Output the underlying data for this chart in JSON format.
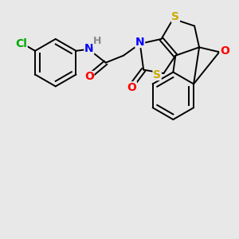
{
  "bg_color": "#e8e8e8",
  "bond_color": "#000000",
  "atom_colors": {
    "N": "#0000ff",
    "O": "#ff0000",
    "S": "#ccaa00",
    "Cl": "#00aa00",
    "H": "#888888",
    "C": "#000000"
  },
  "font_size_atom": 10,
  "line_width": 1.4
}
